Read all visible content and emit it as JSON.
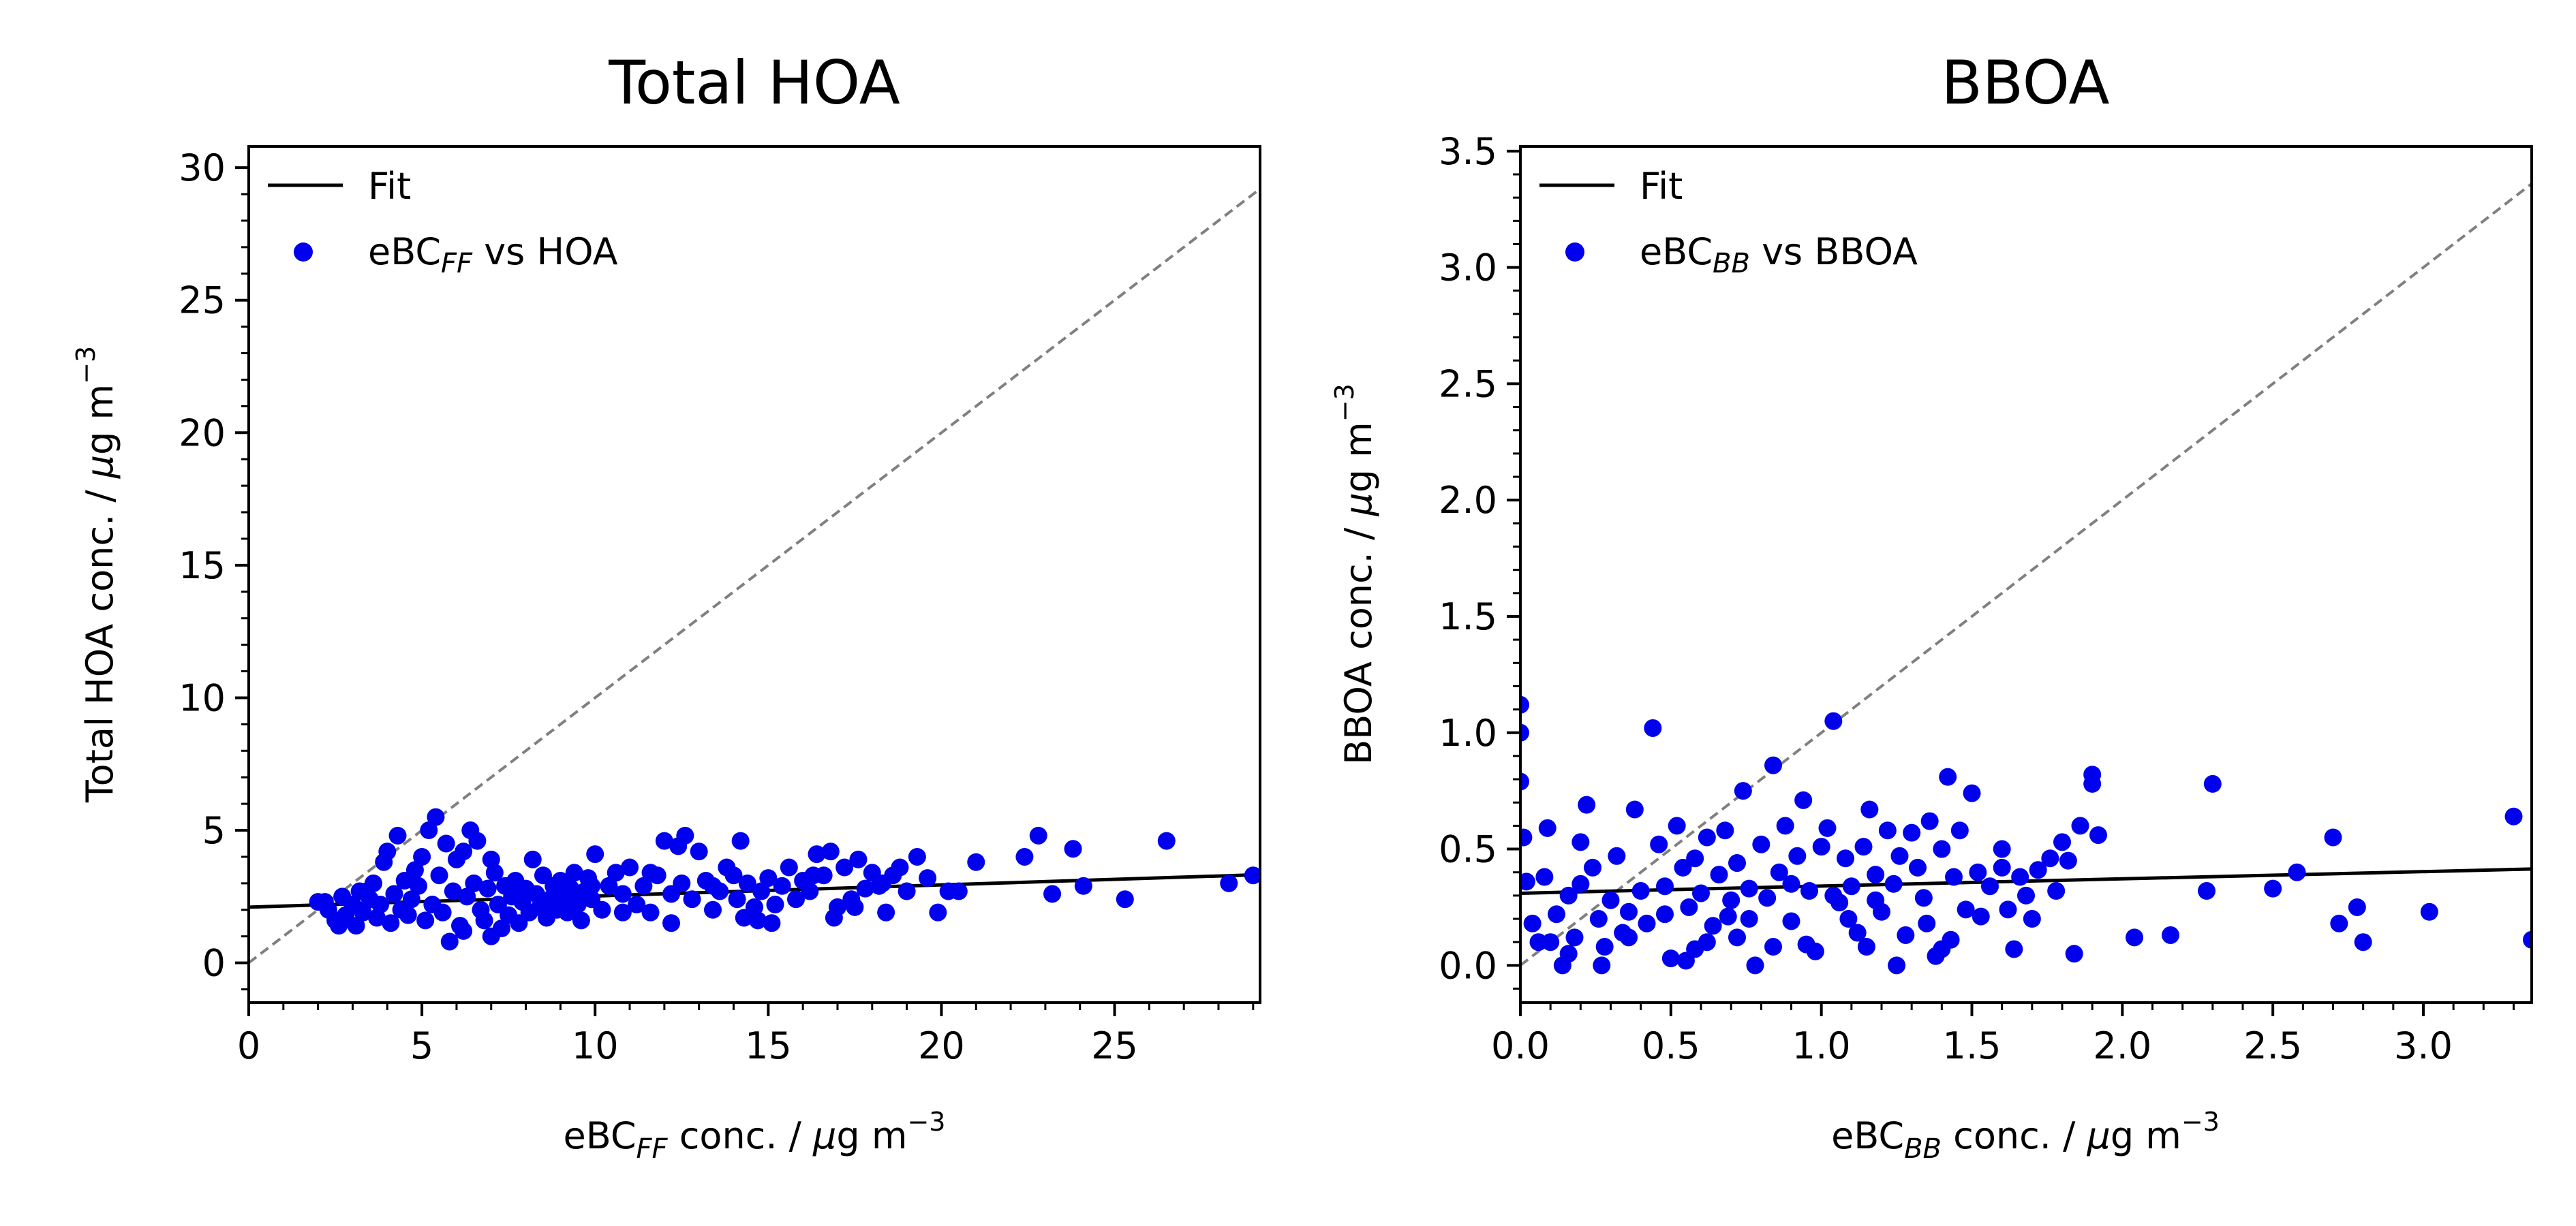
{
  "chart_data": [
    {
      "type": "scatter",
      "title": "Total HOA",
      "xlabel": {
        "pre": "eBC",
        "sub": "FF",
        "post": " conc. / ",
        "mu": "μ",
        "unit": "g m",
        "sup": "−3"
      },
      "ylabel": {
        "text": "Total HOA conc. / ",
        "mu": "μ",
        "unit": "g m",
        "sup": "−3"
      },
      "xlim": [
        0,
        29.2
      ],
      "ylim": [
        -1.5,
        30.8
      ],
      "xticks": [
        0,
        5,
        10,
        15,
        20,
        25
      ],
      "yticks": [
        0,
        5,
        10,
        15,
        20,
        25,
        30
      ],
      "xminor": 1,
      "yminor": 1,
      "tick_labels_x": [
        "0",
        "5",
        "10",
        "15",
        "20",
        "25"
      ],
      "tick_labels_y": [
        "0",
        "5",
        "10",
        "15",
        "20",
        "25",
        "30"
      ],
      "legend": {
        "placement": "upper-left",
        "fit_label": "Fit",
        "scatter_label": {
          "pre": "eBC",
          "sub": "FF",
          "post": " vs HOA"
        }
      },
      "fit": {
        "slope": 0.042,
        "intercept": 2.1
      },
      "identity_line": true,
      "colors": {
        "points": "#0000ee",
        "fit": "#000000",
        "identity": "#808080"
      },
      "points": [
        [
          2.0,
          2.3
        ],
        [
          2.3,
          2.0
        ],
        [
          2.5,
          1.6
        ],
        [
          2.7,
          2.5
        ],
        [
          2.8,
          1.8
        ],
        [
          3.0,
          2.2
        ],
        [
          3.1,
          1.4
        ],
        [
          3.2,
          2.7
        ],
        [
          3.3,
          1.9
        ],
        [
          3.5,
          2.4
        ],
        [
          3.6,
          3.0
        ],
        [
          3.7,
          1.7
        ],
        [
          3.8,
          2.2
        ],
        [
          3.9,
          3.8
        ],
        [
          4.0,
          4.2
        ],
        [
          4.1,
          1.5
        ],
        [
          4.2,
          2.6
        ],
        [
          4.3,
          4.8
        ],
        [
          4.4,
          2.0
        ],
        [
          4.5,
          3.1
        ],
        [
          4.6,
          1.8
        ],
        [
          4.7,
          2.4
        ],
        [
          4.8,
          3.5
        ],
        [
          4.9,
          2.9
        ],
        [
          5.0,
          4.0
        ],
        [
          5.1,
          1.6
        ],
        [
          5.2,
          5.0
        ],
        [
          5.3,
          2.2
        ],
        [
          5.4,
          5.5
        ],
        [
          5.5,
          3.3
        ],
        [
          5.6,
          1.9
        ],
        [
          5.7,
          4.5
        ],
        [
          5.8,
          0.8
        ],
        [
          5.9,
          2.7
        ],
        [
          6.0,
          3.9
        ],
        [
          6.1,
          1.4
        ],
        [
          6.2,
          4.2
        ],
        [
          6.3,
          2.5
        ],
        [
          6.4,
          5.0
        ],
        [
          6.5,
          3.0
        ],
        [
          6.6,
          4.6
        ],
        [
          6.7,
          2.0
        ],
        [
          6.8,
          1.6
        ],
        [
          6.9,
          2.8
        ],
        [
          7.0,
          1.0
        ],
        [
          7.1,
          3.4
        ],
        [
          7.2,
          2.2
        ],
        [
          7.3,
          1.3
        ],
        [
          7.4,
          2.9
        ],
        [
          7.5,
          1.8
        ],
        [
          7.6,
          2.5
        ],
        [
          7.7,
          3.1
        ],
        [
          7.8,
          1.5
        ],
        [
          7.9,
          2.3
        ],
        [
          8.0,
          2.8
        ],
        [
          8.1,
          1.9
        ],
        [
          8.2,
          3.9
        ],
        [
          8.3,
          2.6
        ],
        [
          8.4,
          2.1
        ],
        [
          8.5,
          3.3
        ],
        [
          8.6,
          1.7
        ],
        [
          8.7,
          2.4
        ],
        [
          8.8,
          2.9
        ],
        [
          8.9,
          2.0
        ],
        [
          9.0,
          3.1
        ],
        [
          9.1,
          2.5
        ],
        [
          9.2,
          1.9
        ],
        [
          9.3,
          2.8
        ],
        [
          9.4,
          3.4
        ],
        [
          9.5,
          2.2
        ],
        [
          9.6,
          1.6
        ],
        [
          9.7,
          2.7
        ],
        [
          9.8,
          3.2
        ],
        [
          9.9,
          2.4
        ],
        [
          10.0,
          4.1
        ],
        [
          10.2,
          2.0
        ],
        [
          10.4,
          2.9
        ],
        [
          10.6,
          3.4
        ],
        [
          10.8,
          2.6
        ],
        [
          11.0,
          3.6
        ],
        [
          11.2,
          2.2
        ],
        [
          11.4,
          2.9
        ],
        [
          11.6,
          1.9
        ],
        [
          11.8,
          3.3
        ],
        [
          12.0,
          4.6
        ],
        [
          12.2,
          2.6
        ],
        [
          12.4,
          4.4
        ],
        [
          12.5,
          3.0
        ],
        [
          12.6,
          4.8
        ],
        [
          12.8,
          2.4
        ],
        [
          13.0,
          4.2
        ],
        [
          13.2,
          3.1
        ],
        [
          13.4,
          2.0
        ],
        [
          13.6,
          2.7
        ],
        [
          13.8,
          3.6
        ],
        [
          14.0,
          3.3
        ],
        [
          14.1,
          2.4
        ],
        [
          14.2,
          4.6
        ],
        [
          14.3,
          1.7
        ],
        [
          14.4,
          3.0
        ],
        [
          14.6,
          2.1
        ],
        [
          14.7,
          1.6
        ],
        [
          14.8,
          2.7
        ],
        [
          15.0,
          3.2
        ],
        [
          15.2,
          2.2
        ],
        [
          15.4,
          2.9
        ],
        [
          15.6,
          3.6
        ],
        [
          15.8,
          2.4
        ],
        [
          16.0,
          3.1
        ],
        [
          16.2,
          2.7
        ],
        [
          16.4,
          4.1
        ],
        [
          16.6,
          3.3
        ],
        [
          16.8,
          4.2
        ],
        [
          17.0,
          2.1
        ],
        [
          17.2,
          3.6
        ],
        [
          17.4,
          2.4
        ],
        [
          17.6,
          3.9
        ],
        [
          17.8,
          2.8
        ],
        [
          18.0,
          3.4
        ],
        [
          18.2,
          2.9
        ],
        [
          18.4,
          1.9
        ],
        [
          18.6,
          3.3
        ],
        [
          18.8,
          3.6
        ],
        [
          19.0,
          2.7
        ],
        [
          19.3,
          4.0
        ],
        [
          19.6,
          3.2
        ],
        [
          19.9,
          1.9
        ],
        [
          20.2,
          2.7
        ],
        [
          20.5,
          2.7
        ],
        [
          21.0,
          3.8
        ],
        [
          22.4,
          4.0
        ],
        [
          22.8,
          4.8
        ],
        [
          23.2,
          2.6
        ],
        [
          23.8,
          4.3
        ],
        [
          24.1,
          2.9
        ],
        [
          25.3,
          2.4
        ],
        [
          26.5,
          4.6
        ],
        [
          28.3,
          3.0
        ],
        [
          29.0,
          3.3
        ],
        [
          2.2,
          2.3
        ],
        [
          2.6,
          1.4
        ],
        [
          3.4,
          2.7
        ],
        [
          6.2,
          1.2
        ],
        [
          7.0,
          3.9
        ],
        [
          8.6,
          2.1
        ],
        [
          9.9,
          2.9
        ],
        [
          10.8,
          1.9
        ],
        [
          11.6,
          3.4
        ],
        [
          12.2,
          1.5
        ],
        [
          13.4,
          2.9
        ],
        [
          15.1,
          1.5
        ],
        [
          16.3,
          3.3
        ],
        [
          16.9,
          1.7
        ],
        [
          17.5,
          2.1
        ],
        [
          18.3,
          3.0
        ]
      ]
    },
    {
      "type": "scatter",
      "title": "BBOA",
      "xlabel": {
        "pre": "eBC",
        "sub": "BB",
        "post": " conc. / ",
        "mu": "μ",
        "unit": "g m",
        "sup": "−3"
      },
      "ylabel": {
        "text": "BBOA conc. / ",
        "mu": "μ",
        "unit": "g m",
        "sup": "−3"
      },
      "xlim": [
        0,
        3.36
      ],
      "ylim": [
        -0.16,
        3.52
      ],
      "xticks": [
        0,
        0.5,
        1.0,
        1.5,
        2.0,
        2.5,
        3.0
      ],
      "yticks": [
        0,
        0.5,
        1.0,
        1.5,
        2.0,
        2.5,
        3.0,
        3.5
      ],
      "xminor": 0.1,
      "yminor": 0.1,
      "tick_labels_x": [
        "0.0",
        "0.5",
        "1.0",
        "1.5",
        "2.0",
        "2.5",
        "3.0"
      ],
      "tick_labels_y": [
        "0.0",
        "0.5",
        "1.0",
        "1.5",
        "2.0",
        "2.5",
        "3.0",
        "3.5"
      ],
      "legend": {
        "placement": "upper-left",
        "fit_label": "Fit",
        "scatter_label": {
          "pre": "eBC",
          "sub": "BB",
          "post": " vs BBOA"
        }
      },
      "fit": {
        "slope": 0.031,
        "intercept": 0.31
      },
      "identity_line": true,
      "colors": {
        "points": "#0000ee",
        "fit": "#000000",
        "identity": "#808080"
      },
      "points": [
        [
          0.0,
          1.12
        ],
        [
          0.0,
          1.0
        ],
        [
          0.0,
          0.79
        ],
        [
          0.01,
          0.55
        ],
        [
          0.02,
          0.36
        ],
        [
          0.04,
          0.18
        ],
        [
          0.08,
          0.38
        ],
        [
          0.09,
          0.59
        ],
        [
          0.1,
          0.1
        ],
        [
          0.12,
          0.22
        ],
        [
          0.14,
          0.0
        ],
        [
          0.16,
          0.3
        ],
        [
          0.18,
          0.12
        ],
        [
          0.2,
          0.35
        ],
        [
          0.22,
          0.69
        ],
        [
          0.24,
          0.42
        ],
        [
          0.26,
          0.2
        ],
        [
          0.28,
          0.08
        ],
        [
          0.3,
          0.28
        ],
        [
          0.32,
          0.47
        ],
        [
          0.34,
          0.14
        ],
        [
          0.36,
          0.23
        ],
        [
          0.38,
          0.67
        ],
        [
          0.4,
          0.32
        ],
        [
          0.42,
          0.18
        ],
        [
          0.44,
          1.02
        ],
        [
          0.46,
          0.52
        ],
        [
          0.48,
          0.34
        ],
        [
          0.5,
          0.03
        ],
        [
          0.52,
          0.6
        ],
        [
          0.54,
          0.42
        ],
        [
          0.56,
          0.25
        ],
        [
          0.58,
          0.46
        ],
        [
          0.6,
          0.31
        ],
        [
          0.62,
          0.55
        ],
        [
          0.64,
          0.17
        ],
        [
          0.66,
          0.39
        ],
        [
          0.68,
          0.58
        ],
        [
          0.7,
          0.28
        ],
        [
          0.72,
          0.44
        ],
        [
          0.74,
          0.75
        ],
        [
          0.76,
          0.33
        ],
        [
          0.78,
          0.0
        ],
        [
          0.8,
          0.52
        ],
        [
          0.82,
          0.29
        ],
        [
          0.84,
          0.86
        ],
        [
          0.86,
          0.4
        ],
        [
          0.88,
          0.6
        ],
        [
          0.9,
          0.19
        ],
        [
          0.92,
          0.47
        ],
        [
          0.94,
          0.71
        ],
        [
          0.96,
          0.32
        ],
        [
          0.98,
          0.06
        ],
        [
          1.0,
          0.51
        ],
        [
          1.02,
          0.59
        ],
        [
          1.04,
          1.05
        ],
        [
          1.06,
          0.27
        ],
        [
          1.08,
          0.46
        ],
        [
          1.1,
          0.34
        ],
        [
          1.12,
          0.14
        ],
        [
          1.14,
          0.51
        ],
        [
          1.16,
          0.67
        ],
        [
          1.18,
          0.39
        ],
        [
          1.2,
          0.23
        ],
        [
          1.22,
          0.58
        ],
        [
          1.24,
          0.35
        ],
        [
          1.26,
          0.47
        ],
        [
          1.28,
          0.13
        ],
        [
          1.3,
          0.57
        ],
        [
          1.32,
          0.42
        ],
        [
          1.34,
          0.29
        ],
        [
          1.36,
          0.62
        ],
        [
          1.38,
          0.04
        ],
        [
          1.4,
          0.5
        ],
        [
          1.42,
          0.81
        ],
        [
          1.44,
          0.38
        ],
        [
          1.46,
          0.58
        ],
        [
          1.48,
          0.24
        ],
        [
          1.5,
          0.74
        ],
        [
          1.52,
          0.4
        ],
        [
          1.56,
          0.34
        ],
        [
          1.6,
          0.5
        ],
        [
          1.62,
          0.24
        ],
        [
          1.64,
          0.07
        ],
        [
          1.66,
          0.38
        ],
        [
          1.7,
          0.2
        ],
        [
          1.72,
          0.41
        ],
        [
          1.76,
          0.46
        ],
        [
          1.78,
          0.32
        ],
        [
          1.8,
          0.53
        ],
        [
          1.82,
          0.45
        ],
        [
          1.84,
          0.05
        ],
        [
          1.86,
          0.6
        ],
        [
          1.9,
          0.82
        ],
        [
          1.9,
          0.78
        ],
        [
          1.92,
          0.56
        ],
        [
          2.04,
          0.12
        ],
        [
          2.16,
          0.13
        ],
        [
          2.28,
          0.32
        ],
        [
          2.3,
          0.78
        ],
        [
          2.5,
          0.33
        ],
        [
          2.58,
          0.4
        ],
        [
          2.7,
          0.55
        ],
        [
          2.72,
          0.18
        ],
        [
          2.78,
          0.25
        ],
        [
          2.8,
          0.1
        ],
        [
          3.02,
          0.23
        ],
        [
          3.3,
          0.64
        ],
        [
          3.36,
          0.11
        ],
        [
          0.06,
          0.1
        ],
        [
          0.16,
          0.05
        ],
        [
          0.27,
          0.0
        ],
        [
          0.36,
          0.12
        ],
        [
          0.55,
          0.02
        ],
        [
          0.62,
          0.1
        ],
        [
          0.69,
          0.21
        ],
        [
          0.76,
          0.2
        ],
        [
          0.84,
          0.08
        ],
        [
          0.95,
          0.09
        ],
        [
          1.04,
          0.3
        ],
        [
          1.15,
          0.08
        ],
        [
          1.25,
          0.0
        ],
        [
          1.35,
          0.18
        ],
        [
          1.43,
          0.11
        ],
        [
          1.53,
          0.21
        ],
        [
          1.6,
          0.42
        ],
        [
          1.68,
          0.3
        ],
        [
          0.48,
          0.22
        ],
        [
          0.9,
          0.35
        ],
        [
          1.09,
          0.2
        ],
        [
          0.2,
          0.53
        ],
        [
          0.58,
          0.07
        ],
        [
          1.18,
          0.28
        ],
        [
          1.4,
          0.07
        ],
        [
          0.72,
          0.12
        ]
      ]
    }
  ]
}
